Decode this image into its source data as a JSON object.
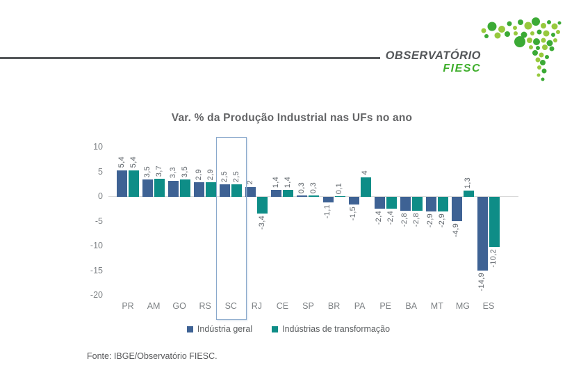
{
  "header": {
    "logo_title": "OBSERVATÓRIO",
    "logo_subtitle": "FIESC"
  },
  "chart_data": {
    "type": "bar",
    "title": "Var. % da Produção Industrial nas UFs no ano",
    "categories": [
      "PR",
      "AM",
      "GO",
      "RS",
      "SC",
      "RJ",
      "CE",
      "SP",
      "BR",
      "PA",
      "PE",
      "BA",
      "MT",
      "MG",
      "ES"
    ],
    "series": [
      {
        "name": "Indústria geral",
        "color": "#3E6294",
        "values": [
          5.4,
          3.5,
          3.3,
          2.9,
          2.5,
          2,
          1.4,
          0.3,
          -1.1,
          -1.5,
          -2.4,
          -2.8,
          -2.9,
          -4.9,
          -14.9
        ]
      },
      {
        "name": "Indústrias de transformação",
        "color": "#0E8D87",
        "values": [
          5.4,
          3.7,
          3.5,
          2.9,
          2.5,
          -3.4,
          1.4,
          0.3,
          0.1,
          4,
          -2.4,
          -2.8,
          -2.9,
          1.3,
          -10.2
        ]
      }
    ],
    "y_ticks": [
      10,
      5,
      0,
      -5,
      -10,
      -15,
      -20
    ],
    "ylim": [
      -20,
      11
    ],
    "grid": false,
    "legend_position": "bottom",
    "highlight_category": "SC",
    "decimal_separator": ","
  },
  "footer": {
    "source_label": "Fonte: IBGE/Observatório FIESC."
  }
}
